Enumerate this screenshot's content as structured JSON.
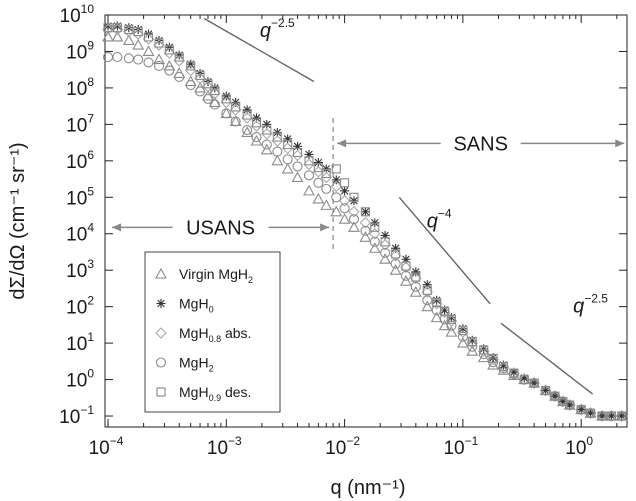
{
  "chart_data": {
    "type": "scatter",
    "xscale": "log",
    "yscale": "log",
    "xlim": [
      0.0001,
      3
    ],
    "ylim": [
      0.05,
      10000000000
    ],
    "xlabel": "q (nm⁻¹)",
    "ylabel": "dΣ/dΩ (cm⁻¹ sr⁻¹)",
    "xticks": [
      0.0001,
      0.001,
      0.01,
      0.1,
      1
    ],
    "xtick_labels": [
      {
        "base": "10",
        "exp": "−4"
      },
      {
        "base": "10",
        "exp": "−3"
      },
      {
        "base": "10",
        "exp": "−2"
      },
      {
        "base": "10",
        "exp": "−1"
      },
      {
        "base": "10",
        "exp": "0"
      }
    ],
    "yticks": [
      0.1,
      1,
      10,
      100,
      1000,
      10000,
      100000,
      1000000,
      10000000,
      100000000,
      1000000000,
      10000000000
    ],
    "ytick_labels": [
      {
        "base": "10",
        "exp": "−1"
      },
      {
        "base": "10",
        "exp": "0"
      },
      {
        "base": "10",
        "exp": "1"
      },
      {
        "base": "10",
        "exp": "2"
      },
      {
        "base": "10",
        "exp": "3"
      },
      {
        "base": "10",
        "exp": "4"
      },
      {
        "base": "10",
        "exp": "5"
      },
      {
        "base": "10",
        "exp": "6"
      },
      {
        "base": "10",
        "exp": "7"
      },
      {
        "base": "10",
        "exp": "8"
      },
      {
        "base": "10",
        "exp": "9"
      },
      {
        "base": "10",
        "exp": "10"
      }
    ],
    "grid": false,
    "legend_position": "bottom-left",
    "usans_sans_boundary_q": 0.008,
    "annotations": {
      "regions": [
        {
          "label": "USANS",
          "x_from": 0.0001,
          "x_to": 0.008,
          "y": 15000
        },
        {
          "label": "SANS",
          "x_from": 0.008,
          "x_to": 2.5,
          "y": 3000000
        }
      ],
      "slopes": [
        {
          "base": "q",
          "exp": "−2.5",
          "line": [
            [
              0.00065,
              8000000000
            ],
            [
              0.0055,
              150000000
            ]
          ],
          "label_at": [
            0.0027,
            2500000000
          ]
        },
        {
          "base": "q",
          "exp": "−4",
          "line": [
            [
              0.029,
              100000
            ],
            [
              0.17,
              120
            ]
          ],
          "label_at": [
            0.063,
            15000
          ]
        },
        {
          "base": "q",
          "exp": "−2.5",
          "line": [
            [
              0.21,
              35
            ],
            [
              1.25,
              0.4
            ]
          ],
          "label_at": [
            1.2,
            70
          ]
        }
      ]
    },
    "series": [
      {
        "name": "Virgin MgH",
        "name_sub": "2",
        "marker": "triangle",
        "x": [
          0.0001,
          0.00012,
          0.00015,
          0.00018,
          0.00022,
          0.00027,
          0.00033,
          0.0004,
          0.0005,
          0.0006,
          0.0007,
          0.0008,
          0.001,
          0.0012,
          0.0015,
          0.0018,
          0.0022,
          0.0027,
          0.0033,
          0.004,
          0.005,
          0.006,
          0.007,
          0.0085,
          0.01,
          0.012,
          0.015,
          0.018,
          0.022,
          0.027,
          0.033,
          0.04,
          0.05,
          0.06,
          0.07,
          0.08,
          0.1,
          0.12,
          0.15,
          0.18,
          0.22,
          0.27,
          0.33,
          0.4,
          0.5,
          0.6,
          0.7,
          0.8,
          1.0,
          1.2,
          1.5,
          1.8,
          2.2,
          2.6
        ],
        "y": [
          2500000000,
          2500000000,
          2000000000,
          1500000000,
          1000000000,
          600000000,
          400000000,
          250000000,
          150000000,
          100000000,
          60000000,
          40000000,
          20000000,
          12000000,
          6000000,
          3500000,
          2000000,
          1000000,
          600000,
          350000,
          150000,
          90000,
          60000,
          40000,
          25000,
          15000,
          8000,
          4000,
          2000,
          1000,
          500,
          250,
          100,
          50,
          30,
          20,
          10,
          6,
          4,
          2.5,
          1.8,
          1.3,
          1.0,
          0.8,
          0.5,
          0.35,
          0.25,
          0.2,
          0.15,
          0.12,
          0.1,
          0.1,
          0.1,
          0.1
        ]
      },
      {
        "name": "MgH",
        "name_sub": "0",
        "marker": "asterisk",
        "x": [
          0.0001,
          0.00012,
          0.00015,
          0.00018,
          0.00022,
          0.00027,
          0.00033,
          0.0004,
          0.0005,
          0.0006,
          0.0007,
          0.0008,
          0.001,
          0.0012,
          0.0015,
          0.0018,
          0.0022,
          0.0027,
          0.0033,
          0.004,
          0.005,
          0.006,
          0.007,
          0.0085,
          0.01,
          0.012,
          0.015,
          0.018,
          0.022,
          0.027,
          0.033,
          0.04,
          0.05,
          0.06,
          0.07,
          0.08,
          0.1,
          0.12,
          0.15,
          0.18,
          0.22,
          0.27,
          0.33,
          0.4,
          0.5,
          0.6,
          0.7,
          0.8,
          1.0,
          1.2,
          1.5,
          1.8,
          2.2,
          2.6
        ],
        "y": [
          5000000000,
          5000000000,
          4500000000,
          4000000000,
          3000000000,
          2000000000,
          1300000000,
          800000000,
          450000000,
          250000000,
          150000000,
          100000000,
          60000000,
          40000000,
          25000000,
          15000000,
          10000000,
          6000000,
          4000000,
          2500000,
          1500000,
          900000,
          600000,
          300000,
          150000,
          80000,
          40000,
          20000,
          9000,
          4000,
          2000,
          900,
          400,
          150,
          80,
          50,
          25,
          12,
          7,
          4,
          2.5,
          1.6,
          1.1,
          0.8,
          0.5,
          0.35,
          0.25,
          0.2,
          0.15,
          0.12,
          0.1,
          0.1,
          0.1,
          0.1
        ]
      },
      {
        "name": "MgH",
        "name_sub": "0.8",
        "name_suffix": " abs.",
        "marker": "diamond",
        "x": [
          0.0001,
          0.00012,
          0.00015,
          0.00018,
          0.00022,
          0.00027,
          0.00033,
          0.0004,
          0.0005,
          0.0006,
          0.0007,
          0.0008,
          0.001,
          0.0012,
          0.0015,
          0.0018,
          0.0022,
          0.0027,
          0.0033,
          0.004,
          0.005,
          0.006,
          0.007,
          0.0085,
          0.01,
          0.012,
          0.015,
          0.018,
          0.022,
          0.027,
          0.033,
          0.04,
          0.05,
          0.06,
          0.07,
          0.08,
          0.1,
          0.12,
          0.15,
          0.18,
          0.22,
          0.27,
          0.33,
          0.4,
          0.5,
          0.6,
          0.7,
          0.8,
          1.0,
          1.2,
          1.5,
          1.8,
          2.2,
          2.6
        ],
        "y": [
          4000000000,
          4000000000,
          3500000000,
          3000000000,
          2200000000,
          1500000000,
          900000000,
          550000000,
          300000000,
          180000000,
          110000000,
          70000000,
          40000000,
          25000000,
          15000000,
          9000000,
          5500000,
          3500000,
          2200000,
          1400000,
          800000,
          500000,
          350000,
          200000,
          80000,
          40000,
          20000,
          10000,
          5000,
          2500,
          1200,
          600,
          250,
          120,
          70,
          40,
          20,
          10,
          6,
          3.5,
          2.2,
          1.5,
          1.0,
          0.8,
          0.5,
          0.35,
          0.25,
          0.2,
          0.15,
          0.12,
          0.1,
          0.1,
          0.1,
          0.1
        ]
      },
      {
        "name": "MgH",
        "name_sub": "2",
        "marker": "circle",
        "x": [
          0.0001,
          0.00012,
          0.00015,
          0.00018,
          0.00022,
          0.00027,
          0.00033,
          0.0004,
          0.0005,
          0.0006,
          0.0007,
          0.0008,
          0.001,
          0.0012,
          0.0015,
          0.0018,
          0.0022,
          0.0027,
          0.0033,
          0.004,
          0.005,
          0.006,
          0.007,
          0.0085,
          0.01,
          0.012,
          0.015,
          0.018,
          0.022,
          0.027,
          0.033,
          0.04,
          0.05,
          0.06,
          0.07,
          0.08,
          0.1,
          0.12,
          0.15,
          0.18,
          0.22,
          0.27,
          0.33,
          0.4,
          0.5,
          0.6,
          0.7,
          0.8,
          1.0,
          1.2,
          1.5,
          1.8,
          2.2,
          2.6
        ],
        "y": [
          700000000,
          700000000,
          650000000,
          600000000,
          500000000,
          400000000,
          300000000,
          200000000,
          120000000,
          80000000,
          50000000,
          35000000,
          20000000,
          12000000,
          7000000,
          4500000,
          2800000,
          1800000,
          1100000,
          700000,
          400000,
          250000,
          170000,
          100000,
          50000,
          25000,
          12000,
          6000,
          3000,
          1500,
          700,
          350,
          150,
          80,
          45,
          30,
          15,
          8,
          5,
          3,
          2,
          1.4,
          1.0,
          0.8,
          0.5,
          0.35,
          0.25,
          0.2,
          0.15,
          0.12,
          0.1,
          0.1,
          0.1,
          0.1
        ]
      },
      {
        "name": "MgH",
        "name_sub": "0.9",
        "name_suffix": " des.",
        "marker": "square",
        "x": [
          0.0001,
          0.00012,
          0.00015,
          0.00018,
          0.00022,
          0.00027,
          0.00033,
          0.0004,
          0.0005,
          0.0006,
          0.0007,
          0.0008,
          0.001,
          0.0012,
          0.0015,
          0.0018,
          0.0022,
          0.0027,
          0.0033,
          0.004,
          0.005,
          0.006,
          0.007,
          0.0085,
          0.01,
          0.012,
          0.015,
          0.018,
          0.022,
          0.027,
          0.033,
          0.04,
          0.05,
          0.06,
          0.07,
          0.08,
          0.1,
          0.12,
          0.15,
          0.18,
          0.22,
          0.27,
          0.33,
          0.4,
          0.5,
          0.6,
          0.7,
          0.8,
          1.0,
          1.2,
          1.5,
          1.8,
          2.2,
          2.6
        ],
        "y": [
          4500000000,
          4500000000,
          4000000000,
          3500000000,
          2500000000,
          1700000000,
          1100000000,
          700000000,
          400000000,
          220000000,
          130000000,
          85000000,
          50000000,
          30000000,
          18000000,
          11000000,
          7000000,
          4500000,
          2800000,
          1700000,
          1000000,
          650000,
          450000,
          600000,
          250000,
          100000,
          40000,
          15000,
          6000,
          2800,
          1300,
          650,
          280,
          130,
          75,
          45,
          22,
          11,
          6.5,
          3.8,
          2.3,
          1.5,
          1.0,
          0.8,
          0.5,
          0.35,
          0.25,
          0.2,
          0.15,
          0.12,
          0.1,
          0.1,
          0.1,
          0.1
        ]
      }
    ]
  }
}
